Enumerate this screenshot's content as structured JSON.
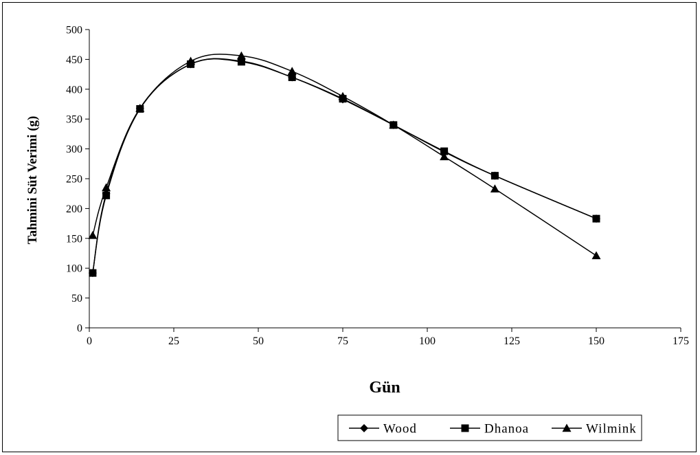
{
  "chart_data": {
    "type": "line",
    "xlabel": "Gün",
    "ylabel": "Tahmini Süt Verimi (g)",
    "xlim": [
      0,
      175
    ],
    "ylim": [
      0,
      500
    ],
    "xticks": [
      0,
      25,
      50,
      75,
      100,
      125,
      150,
      175
    ],
    "yticks": [
      0,
      50,
      100,
      150,
      200,
      250,
      300,
      350,
      400,
      450,
      500
    ],
    "grid": false,
    "legend_position": "bottom-right",
    "series": [
      {
        "name": "Wood",
        "marker": "diamond",
        "x": [
          1,
          5,
          15,
          30,
          45,
          60,
          75,
          90,
          105,
          120,
          150
        ],
        "y": [
          92,
          225,
          368,
          442,
          447,
          420,
          383,
          340,
          295,
          255,
          183
        ]
      },
      {
        "name": "Dhanoa",
        "marker": "square",
        "x": [
          1,
          5,
          15,
          30,
          45,
          60,
          75,
          90,
          105,
          120,
          150
        ],
        "y": [
          92,
          222,
          367,
          442,
          446,
          420,
          384,
          340,
          296,
          255,
          183
        ]
      },
      {
        "name": "Wilmink",
        "marker": "triangle",
        "x": [
          1,
          5,
          15,
          30,
          45,
          60,
          75,
          90,
          105,
          120,
          150
        ],
        "y": [
          155,
          235,
          368,
          447,
          456,
          430,
          388,
          340,
          287,
          233,
          121
        ]
      }
    ]
  }
}
